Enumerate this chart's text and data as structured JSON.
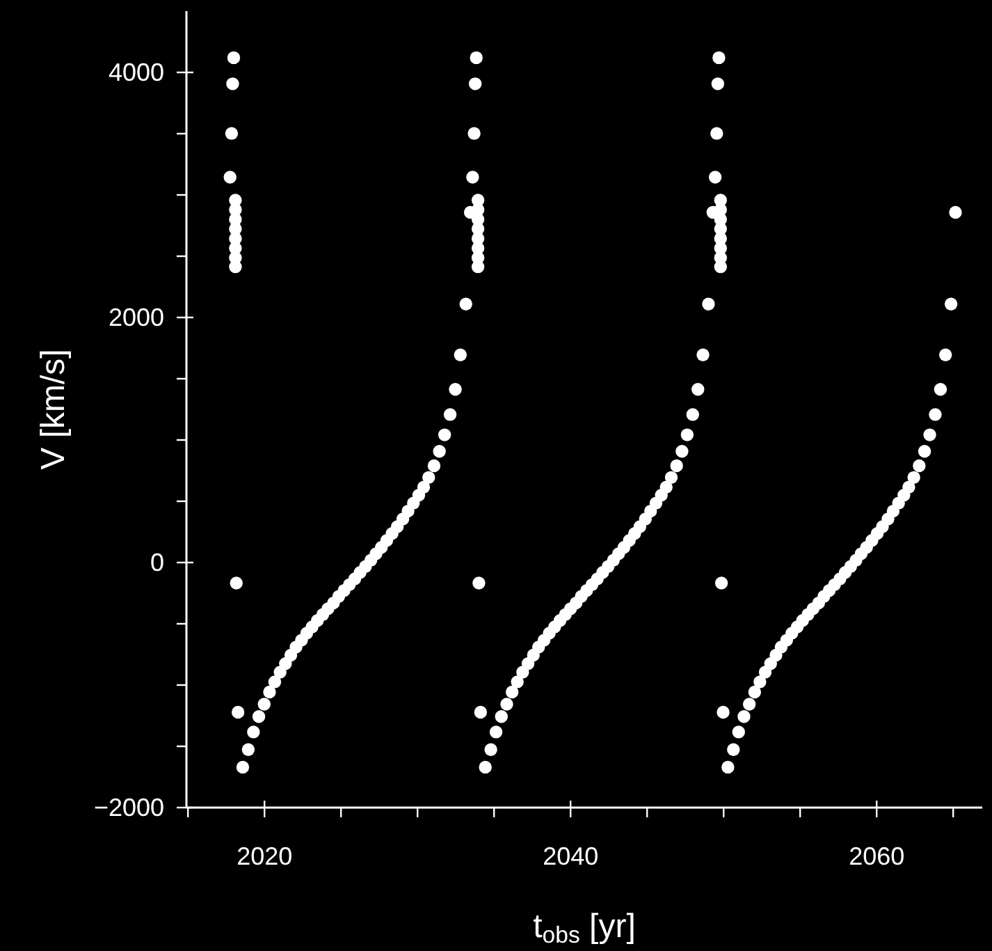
{
  "chart_data": {
    "type": "scatter",
    "xlabel": "t$_{obs}$ [yr]",
    "ylabel": "V [km/s]",
    "marker": "circle",
    "grid": false,
    "legend": false,
    "xlim": [
      2014.9,
      2066.9
    ],
    "ylim": [
      -2000,
      4500
    ],
    "xticks": [
      {
        "value": 2015,
        "label": null
      },
      2020,
      {
        "value": 2025,
        "label": null
      },
      {
        "value": 2030,
        "label": null
      },
      {
        "value": 2035,
        "label": null
      },
      2040,
      {
        "value": 2045,
        "label": null
      },
      {
        "value": 2050,
        "label": null
      },
      {
        "value": 2055,
        "label": null
      },
      2060,
      {
        "value": 2065,
        "label": null
      }
    ],
    "yticks": [
      {
        "value": -2000,
        "label": "−2000"
      },
      {
        "value": -1500,
        "label": null
      },
      {
        "value": -1000,
        "label": null
      },
      {
        "value": -500,
        "label": null
      },
      0,
      {
        "value": 500,
        "label": null
      },
      {
        "value": 1000,
        "label": null
      },
      {
        "value": 1500,
        "label": null
      },
      2000,
      {
        "value": 2500,
        "label": null
      },
      {
        "value": 3000,
        "label": null
      },
      {
        "value": 3500,
        "label": null
      },
      4000
    ],
    "series": [
      {
        "color": "#ffffff",
        "x": [
          2017.75,
          2017.85,
          2017.92,
          2017.99,
          2018.1,
          2018.1,
          2018.1,
          2018.1,
          2018.1,
          2018.1,
          2018.1,
          2018.1,
          2018.16,
          2018.27,
          2018.58,
          2018.94,
          2019.28,
          2019.63,
          2019.98,
          2020.33,
          2020.67,
          2021.02,
          2021.37,
          2021.72,
          2022.06,
          2022.42,
          2022.76,
          2023.11,
          2023.46,
          2023.81,
          2024.15,
          2024.51,
          2024.85,
          2025.2,
          2025.55,
          2025.9,
          2026.25,
          2026.6,
          2026.95,
          2027.29,
          2027.64,
          2027.99,
          2028.34,
          2028.68,
          2029.04,
          2029.38,
          2029.73,
          2030.08,
          2030.4,
          2030.73,
          2031.08,
          2031.43,
          2031.77,
          2032.13,
          2032.47,
          2032.8,
          2033.16,
          2033.45,
          2033.6,
          2033.7,
          2033.77,
          2033.84,
          2033.95,
          2033.95,
          2033.95,
          2033.95,
          2033.95,
          2033.95,
          2033.95,
          2033.95,
          2034.01,
          2034.12,
          2034.43,
          2034.79,
          2035.13,
          2035.48,
          2035.83,
          2036.18,
          2036.52,
          2036.87,
          2037.22,
          2037.57,
          2037.91,
          2038.27,
          2038.61,
          2038.96,
          2039.31,
          2039.66,
          2040.0,
          2040.36,
          2040.7,
          2041.05,
          2041.4,
          2041.75,
          2042.1,
          2042.45,
          2042.8,
          2043.14,
          2043.49,
          2043.84,
          2044.19,
          2044.53,
          2044.89,
          2045.23,
          2045.58,
          2045.93,
          2046.25,
          2046.58,
          2046.93,
          2047.28,
          2047.62,
          2047.98,
          2048.32,
          2048.65,
          2049.01,
          2049.3,
          2049.45,
          2049.55,
          2049.62,
          2049.69,
          2049.8,
          2049.8,
          2049.8,
          2049.8,
          2049.8,
          2049.8,
          2049.8,
          2049.8,
          2049.86,
          2049.97,
          2050.28,
          2050.64,
          2050.98,
          2051.33,
          2051.68,
          2052.03,
          2052.37,
          2052.72,
          2053.07,
          2053.42,
          2053.76,
          2054.12,
          2054.46,
          2054.81,
          2055.16,
          2055.51,
          2055.85,
          2056.21,
          2056.55,
          2056.9,
          2057.25,
          2057.6,
          2057.95,
          2058.3,
          2058.65,
          2058.99,
          2059.34,
          2059.69,
          2060.04,
          2060.38,
          2060.74,
          2061.08,
          2061.43,
          2061.78,
          2062.1,
          2062.43,
          2062.78,
          2063.13,
          2063.47,
          2063.83,
          2064.17,
          2064.5,
          2064.86,
          2065.15
        ],
        "values": [
          3145,
          3502,
          3907,
          4120,
          2958,
          2880,
          2801,
          2723,
          2644,
          2566,
          2487,
          2414,
          -168,
          -1222,
          -1670,
          -1527,
          -1383,
          -1257,
          -1156,
          -1057,
          -974,
          -895,
          -825,
          -756,
          -690,
          -634,
          -577,
          -525,
          -473,
          -425,
          -377,
          -330,
          -277,
          -228,
          -181,
          -133,
          -81,
          -33,
          19,
          72,
          124,
          181,
          237,
          293,
          355,
          420,
          485,
          550,
          615,
          694,
          790,
          908,
          1042,
          1208,
          1413,
          1695,
          2109,
          2858,
          3145,
          3502,
          3907,
          4120,
          2958,
          2880,
          2801,
          2723,
          2644,
          2566,
          2487,
          2414,
          -168,
          -1222,
          -1670,
          -1527,
          -1383,
          -1257,
          -1156,
          -1057,
          -974,
          -895,
          -825,
          -756,
          -690,
          -634,
          -577,
          -525,
          -473,
          -425,
          -377,
          -330,
          -277,
          -228,
          -181,
          -133,
          -81,
          -33,
          19,
          72,
          124,
          181,
          237,
          293,
          355,
          420,
          485,
          550,
          615,
          694,
          790,
          908,
          1042,
          1208,
          1413,
          1695,
          2109,
          2858,
          3145,
          3502,
          3907,
          4120,
          2958,
          2880,
          2801,
          2723,
          2644,
          2566,
          2487,
          2414,
          -168,
          -1222,
          -1670,
          -1527,
          -1383,
          -1257,
          -1156,
          -1057,
          -974,
          -895,
          -825,
          -756,
          -690,
          -634,
          -577,
          -525,
          -473,
          -425,
          -377,
          -330,
          -277,
          -228,
          -181,
          -133,
          -81,
          -33,
          19,
          72,
          124,
          181,
          237,
          293,
          355,
          420,
          485,
          550,
          615,
          694,
          790,
          908,
          1042,
          1208,
          1413,
          1695,
          2109,
          2858
        ]
      }
    ]
  }
}
